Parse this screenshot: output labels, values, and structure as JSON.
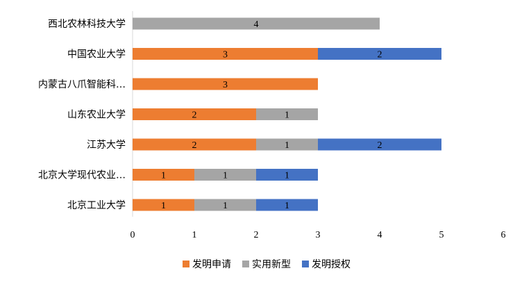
{
  "chart_data": {
    "type": "bar",
    "orientation": "horizontal",
    "stacked": true,
    "categories": [
      "西北农林科技大学",
      "中国农业大学",
      "内蒙古八爪智能科…",
      "山东农业大学",
      "江苏大学",
      "北京大学现代农业…",
      "北京工业大学"
    ],
    "series": [
      {
        "name": "发明申请",
        "color": "#ED7D31",
        "values": [
          0,
          3,
          3,
          2,
          2,
          1,
          1
        ]
      },
      {
        "name": "实用新型",
        "color": "#A5A5A5",
        "values": [
          4,
          0,
          0,
          1,
          1,
          1,
          1
        ]
      },
      {
        "name": "发明授权",
        "color": "#4472C4",
        "values": [
          0,
          2,
          0,
          0,
          2,
          1,
          1
        ]
      }
    ],
    "x_ticks": [
      "0",
      "1",
      "2",
      "3",
      "4",
      "5",
      "6"
    ],
    "xlim": [
      0,
      6
    ],
    "grid": false,
    "legend_position": "bottom"
  }
}
